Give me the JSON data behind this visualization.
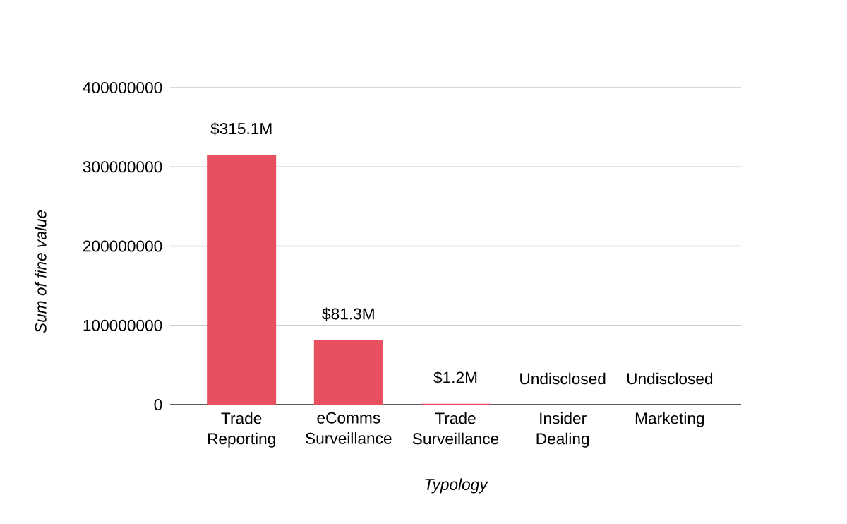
{
  "chart_data": {
    "type": "bar",
    "xlabel": "Typology",
    "ylabel": "Sum of fine value",
    "categories": [
      "Trade Reporting",
      "eComms Surveillance",
      "Trade Surveillance",
      "Insider Dealing",
      "Marketing"
    ],
    "values": [
      315100000,
      81300000,
      1200000,
      null,
      null
    ],
    "value_labels": [
      "$315.1M",
      "$81.3M",
      "$1.2M",
      "Undisclosed",
      "Undisclosed"
    ],
    "color": "#e8505f",
    "ylim": [
      0,
      400000000
    ],
    "yticks": [
      0,
      100000000,
      200000000,
      300000000,
      400000000
    ],
    "grid": "y"
  }
}
